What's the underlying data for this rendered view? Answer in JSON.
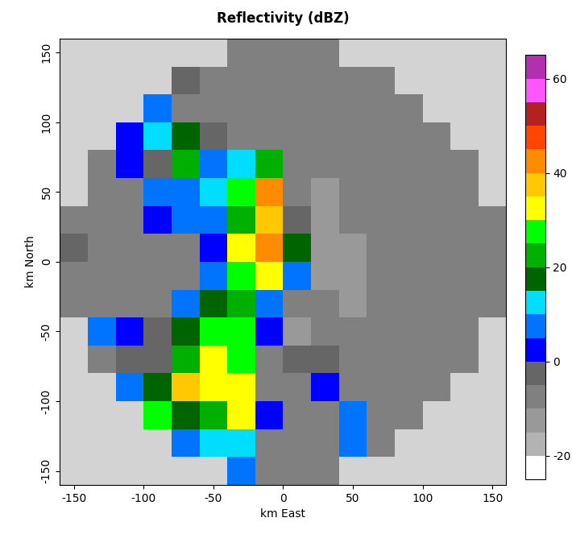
{
  "chart_data": {
    "type": "heatmap",
    "title": "Reflectivity (dBZ)",
    "xlabel": "km East",
    "ylabel": "km North",
    "xlim": [
      -160,
      160
    ],
    "ylim": [
      -160,
      160
    ],
    "xticks": [
      -150,
      -100,
      -50,
      0,
      50,
      100,
      150
    ],
    "yticks": [
      -150,
      -100,
      -50,
      0,
      50,
      100,
      150
    ],
    "x": [
      -150,
      -130,
      -110,
      -90,
      -70,
      -50,
      -30,
      -10,
      10,
      30,
      50,
      70,
      90,
      110,
      130,
      150
    ],
    "y": [
      150,
      130,
      110,
      90,
      70,
      50,
      30,
      10,
      -10,
      -30,
      -50,
      -70,
      -90,
      -110,
      -130,
      -150
    ],
    "values": [
      [
        null,
        null,
        null,
        null,
        null,
        null,
        -8,
        -8,
        -8,
        -8,
        null,
        null,
        null,
        null,
        null,
        null
      ],
      [
        null,
        null,
        null,
        null,
        -5,
        -8,
        -8,
        -8,
        -8,
        -8,
        -8,
        -8,
        null,
        null,
        null,
        null
      ],
      [
        null,
        null,
        null,
        5,
        -8,
        -8,
        -8,
        -8,
        -8,
        -8,
        -8,
        -8,
        -8,
        null,
        null,
        null
      ],
      [
        null,
        null,
        3,
        10,
        15,
        -5,
        -8,
        -8,
        -8,
        -8,
        -8,
        -8,
        -8,
        -8,
        null,
        null
      ],
      [
        null,
        -8,
        3,
        -5,
        20,
        5,
        10,
        20,
        -10,
        -10,
        -8,
        -8,
        -8,
        -8,
        -8,
        null
      ],
      [
        null,
        -8,
        -8,
        5,
        5,
        10,
        25,
        40,
        -10,
        -12,
        -10,
        -8,
        -8,
        -8,
        -8,
        null
      ],
      [
        -8,
        -8,
        -8,
        0,
        5,
        5,
        20,
        35,
        -5,
        -12,
        -10,
        -8,
        -8,
        -8,
        -8,
        -8
      ],
      [
        -5,
        -8,
        -8,
        -8,
        -8,
        0,
        30,
        40,
        15,
        -12,
        -12,
        -10,
        -8,
        -8,
        -8,
        -8
      ],
      [
        -8,
        -8,
        -8,
        -8,
        -8,
        5,
        25,
        30,
        5,
        -12,
        -12,
        -10,
        -8,
        -8,
        -8,
        -8
      ],
      [
        -8,
        -8,
        -8,
        -8,
        5,
        15,
        20,
        5,
        -10,
        -10,
        -12,
        -10,
        -8,
        -8,
        -8,
        -8
      ],
      [
        null,
        5,
        3,
        -5,
        15,
        25,
        25,
        3,
        -12,
        -10,
        -10,
        -8,
        -8,
        -8,
        -8,
        null
      ],
      [
        null,
        -8,
        -5,
        -5,
        20,
        30,
        25,
        -8,
        -5,
        -5,
        -8,
        -8,
        -8,
        -8,
        -8,
        null
      ],
      [
        null,
        null,
        5,
        15,
        35,
        30,
        30,
        -8,
        -8,
        0,
        -8,
        -8,
        -8,
        -8,
        null,
        null
      ],
      [
        null,
        null,
        null,
        25,
        15,
        20,
        30,
        3,
        -8,
        -8,
        5,
        -8,
        -8,
        null,
        null,
        null
      ],
      [
        null,
        null,
        null,
        null,
        5,
        10,
        10,
        -8,
        -8,
        -8,
        8,
        -8,
        null,
        null,
        null,
        null
      ],
      [
        null,
        null,
        null,
        null,
        null,
        null,
        5,
        -8,
        -8,
        -8,
        null,
        null,
        null,
        null,
        null,
        null
      ]
    ],
    "colorbar": {
      "bounds": [
        -25,
        -20,
        -15,
        -10,
        -5,
        0,
        5,
        10,
        15,
        20,
        25,
        30,
        35,
        40,
        45,
        50,
        55,
        60,
        65
      ],
      "colors": [
        "#ffffff",
        "#b3b3b3",
        "#999999",
        "#808080",
        "#666666",
        "#0000ff",
        "#0073ff",
        "#00ddff",
        "#006400",
        "#00b000",
        "#00ff00",
        "#ffff00",
        "#ffc800",
        "#ff8c00",
        "#ff4500",
        "#b22222",
        "#ff55ff",
        "#b030b0"
      ],
      "ticks": [
        -20,
        0,
        20,
        40,
        60
      ]
    }
  }
}
